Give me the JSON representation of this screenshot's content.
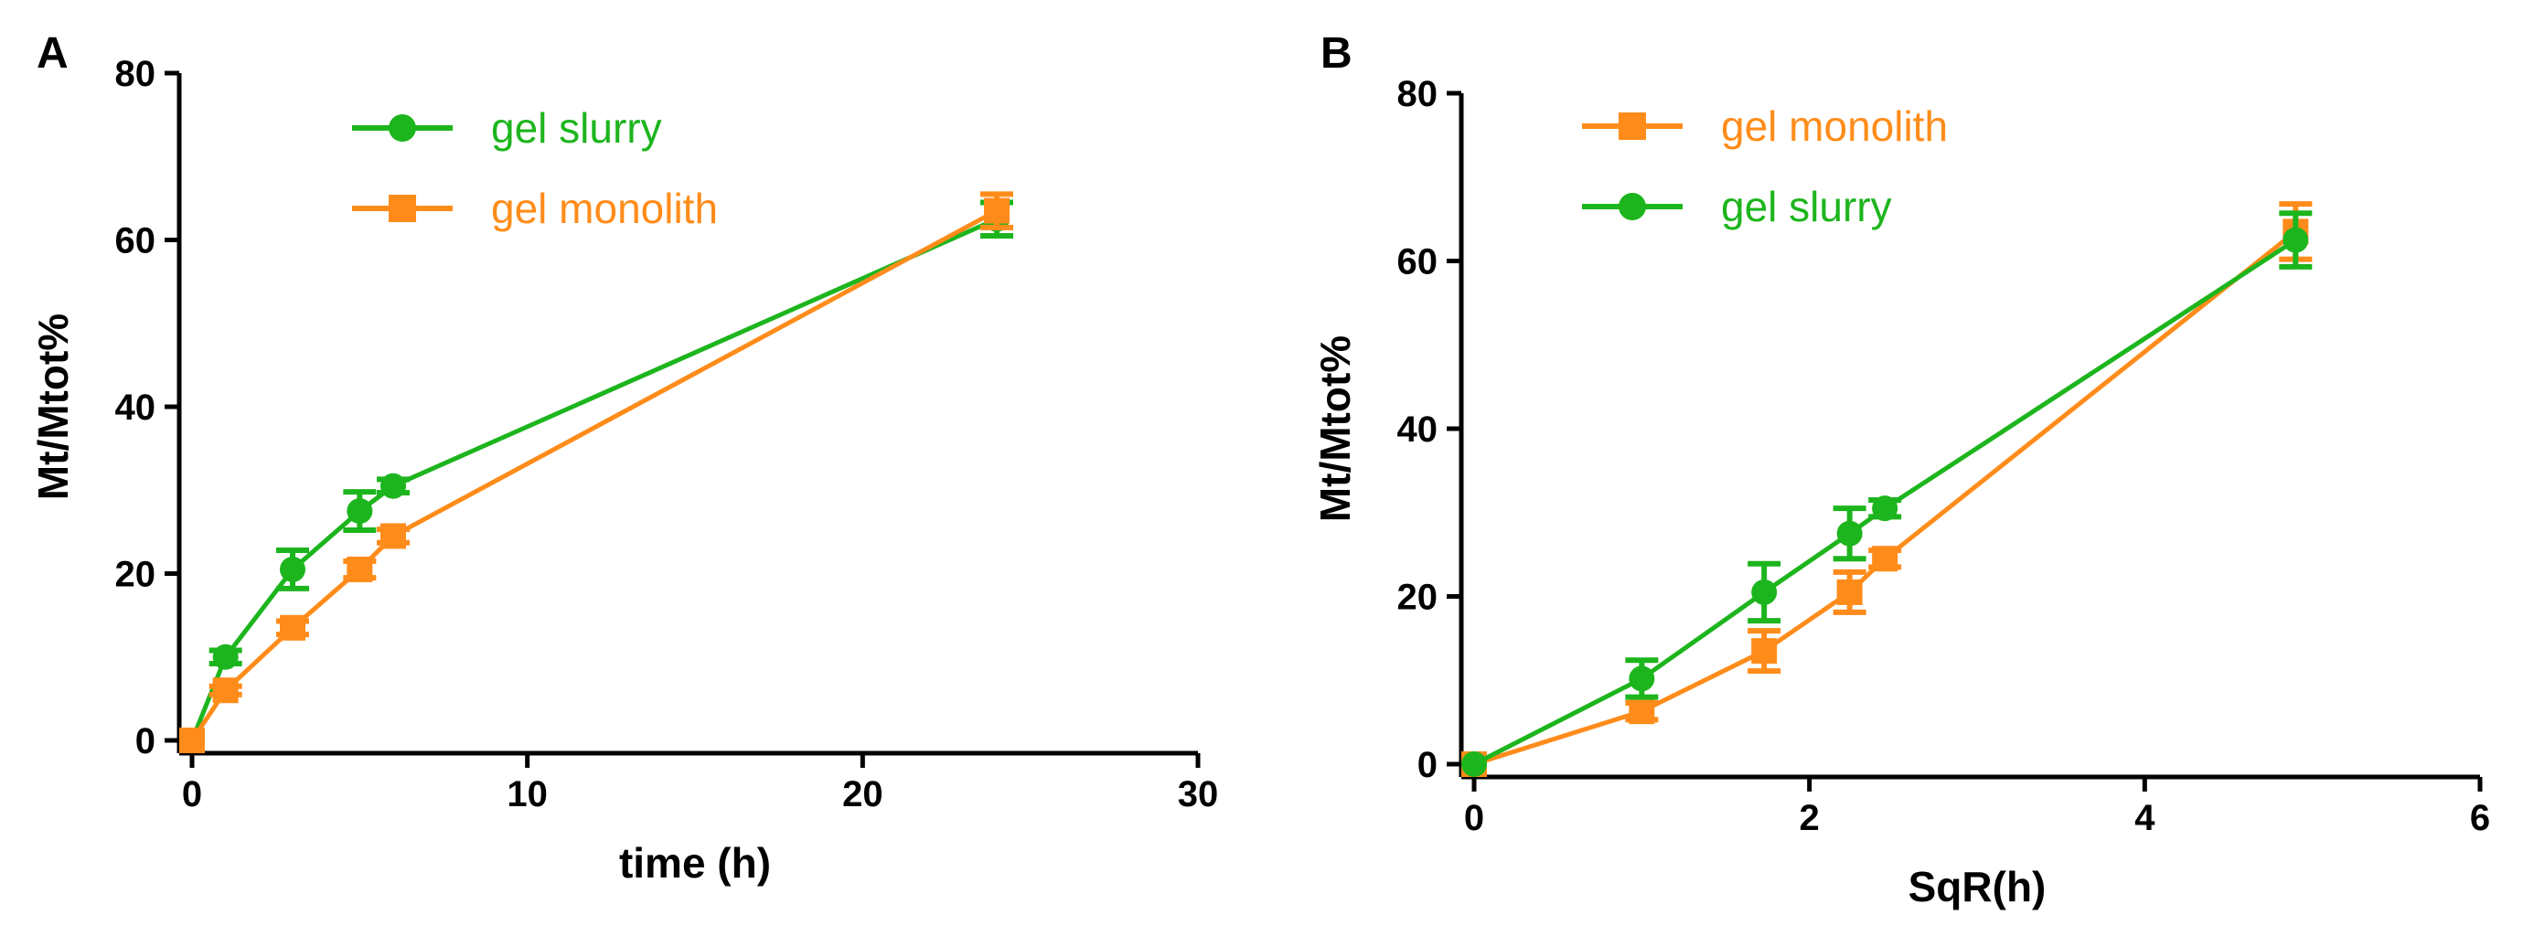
{
  "colors": {
    "green": "#1db51d",
    "orange": "#ff8c1a",
    "axis": "#000000"
  },
  "chart_data": [
    {
      "panel": "A",
      "type": "line",
      "xlabel": "time (h)",
      "ylabel": "Mt/Mtot%",
      "xlim": [
        0,
        30
      ],
      "ylim": [
        0,
        80
      ],
      "xticks": [
        0,
        10,
        20,
        30
      ],
      "yticks": [
        0,
        20,
        40,
        60,
        80
      ],
      "legend_position": "top-left",
      "legend_order": [
        "gel slurry",
        "gel monolith"
      ],
      "series": [
        {
          "name": "gel slurry",
          "color_key": "green",
          "marker": "circle",
          "x": [
            0,
            1,
            3,
            5,
            6,
            24
          ],
          "y": [
            0,
            10,
            20.5,
            27.5,
            30.5,
            62.5
          ],
          "err": [
            0,
            0.8,
            2.3,
            2.3,
            0.8,
            2.0
          ]
        },
        {
          "name": "gel monolith",
          "color_key": "orange",
          "marker": "square",
          "x": [
            0,
            1,
            3,
            5,
            6,
            24
          ],
          "y": [
            0,
            6,
            13.5,
            20.5,
            24.5,
            63.5
          ],
          "err": [
            0,
            0.5,
            0.8,
            1.0,
            0.8,
            2.0
          ]
        }
      ]
    },
    {
      "panel": "B",
      "type": "line",
      "xlabel": "SqR(h)",
      "ylabel": "Mt/Mtot%",
      "xlim": [
        0,
        6
      ],
      "ylim": [
        0,
        80
      ],
      "xticks": [
        0,
        2,
        4,
        6
      ],
      "yticks": [
        0,
        20,
        40,
        60,
        80
      ],
      "legend_position": "top-left",
      "legend_order": [
        "gel monolith",
        "gel  slurry"
      ],
      "series": [
        {
          "name": "gel monolith",
          "color_key": "orange",
          "marker": "square",
          "x": [
            0,
            1,
            1.73,
            2.24,
            2.45,
            4.9
          ],
          "y": [
            0,
            6.3,
            13.5,
            20.5,
            24.5,
            63.5
          ],
          "err": [
            0,
            1.0,
            2.4,
            2.4,
            1.0,
            3.3
          ]
        },
        {
          "name": "gel  slurry",
          "color_key": "green",
          "marker": "circle",
          "x": [
            0,
            1,
            1.73,
            2.24,
            2.45,
            4.9
          ],
          "y": [
            0,
            10.2,
            20.5,
            27.5,
            30.5,
            62.5
          ],
          "err": [
            0,
            2.2,
            3.4,
            3.0,
            1.0,
            3.2
          ]
        }
      ]
    }
  ]
}
